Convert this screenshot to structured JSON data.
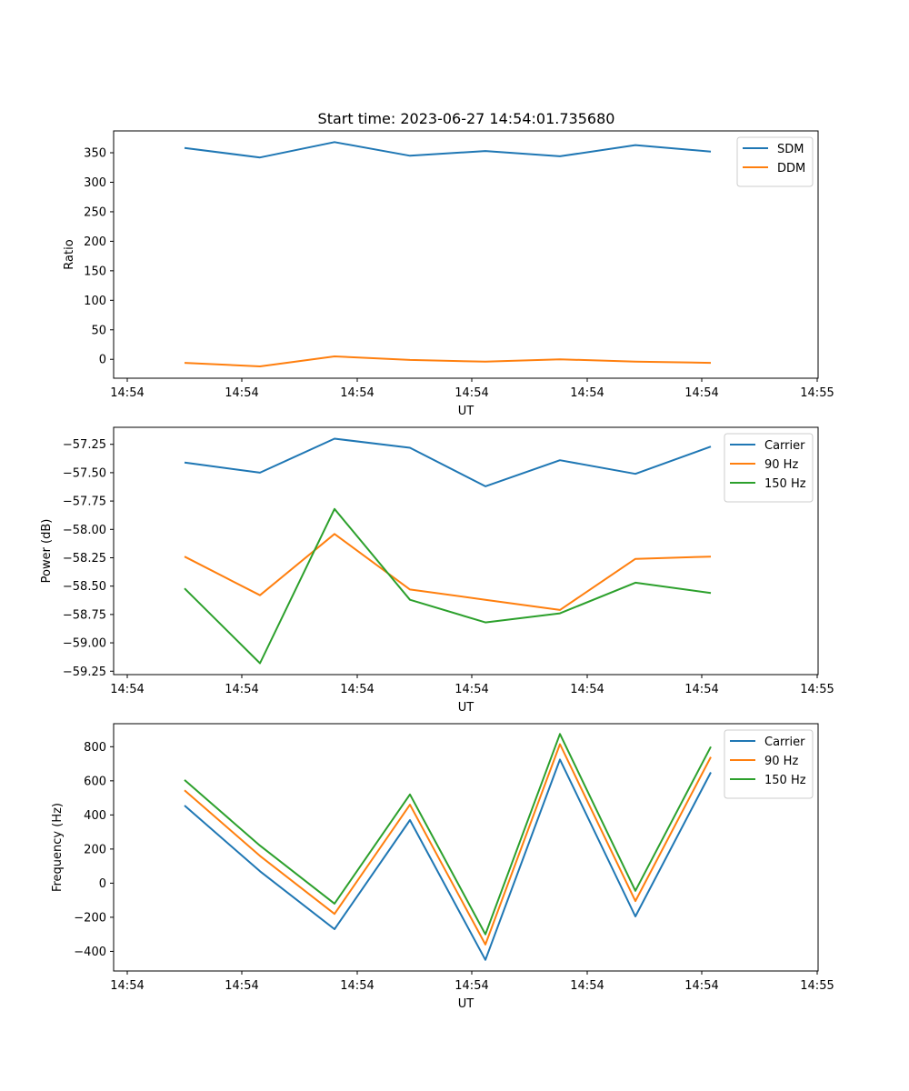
{
  "chart_data": [
    {
      "type": "line",
      "title": "Start time: 2023-06-27 14:54:01.735680",
      "xlabel": "UT",
      "ylabel": "Ratio",
      "x_tick_labels": [
        "14:54",
        "14:54",
        "14:54",
        "14:54",
        "14:54",
        "14:54",
        "14:54",
        "14:55"
      ],
      "ylim": [
        -32,
        387
      ],
      "y_ticks": [
        0,
        50,
        100,
        150,
        200,
        250,
        300,
        350
      ],
      "legend_position": "top-right",
      "series": [
        {
          "name": "SDM",
          "color": "#1f77b4",
          "values": [
            358,
            342,
            368,
            345,
            353,
            344,
            363,
            352
          ]
        },
        {
          "name": "DDM",
          "color": "#ff7f0e",
          "values": [
            -6,
            -12,
            5,
            -1,
            -4,
            0,
            -4,
            -6
          ]
        }
      ]
    },
    {
      "type": "line",
      "title": "",
      "xlabel": "UT",
      "ylabel": "Power (dB)",
      "x_tick_labels": [
        "14:54",
        "14:54",
        "14:54",
        "14:54",
        "14:54",
        "14:54",
        "14:54",
        "14:55"
      ],
      "ylim": [
        -59.28,
        -57.1
      ],
      "y_ticks": [
        -59.25,
        -59.0,
        -58.75,
        -58.5,
        -58.25,
        -58.0,
        -57.75,
        -57.5,
        -57.25
      ],
      "y_tick_labels": [
        "−59.25",
        "−59.00",
        "−58.75",
        "−58.50",
        "−58.25",
        "−58.00",
        "−57.75",
        "−57.50",
        "−57.25"
      ],
      "legend_position": "top-right",
      "series": [
        {
          "name": "Carrier",
          "color": "#1f77b4",
          "values": [
            -57.41,
            -57.5,
            -57.2,
            -57.28,
            -57.62,
            -57.39,
            -57.51,
            -57.27
          ]
        },
        {
          "name": "90 Hz",
          "color": "#ff7f0e",
          "values": [
            -58.24,
            -58.58,
            -58.04,
            -58.53,
            -58.62,
            -58.71,
            -58.26,
            -58.24
          ]
        },
        {
          "name": "150 Hz",
          "color": "#2ca02c",
          "values": [
            -58.52,
            -59.18,
            -57.82,
            -58.62,
            -58.82,
            -58.74,
            -58.47,
            -58.56
          ]
        }
      ]
    },
    {
      "type": "line",
      "title": "",
      "xlabel": "UT",
      "ylabel": "Frequency (Hz)",
      "x_tick_labels": [
        "14:54",
        "14:54",
        "14:54",
        "14:54",
        "14:54",
        "14:54",
        "14:54",
        "14:55"
      ],
      "ylim": [
        -515,
        935
      ],
      "y_ticks": [
        -400,
        -200,
        0,
        200,
        400,
        600,
        800
      ],
      "y_tick_labels": [
        "−400",
        "−200",
        "0",
        "200",
        "400",
        "600",
        "800"
      ],
      "legend_position": "top-right",
      "series": [
        {
          "name": "Carrier",
          "color": "#1f77b4",
          "values": [
            455,
            70,
            -270,
            370,
            -450,
            725,
            -195,
            650
          ]
        },
        {
          "name": "90 Hz",
          "color": "#ff7f0e",
          "values": [
            545,
            160,
            -180,
            460,
            -360,
            815,
            -105,
            740
          ]
        },
        {
          "name": "150 Hz",
          "color": "#2ca02c",
          "values": [
            605,
            220,
            -120,
            520,
            -300,
            875,
            -45,
            800
          ]
        }
      ]
    }
  ]
}
